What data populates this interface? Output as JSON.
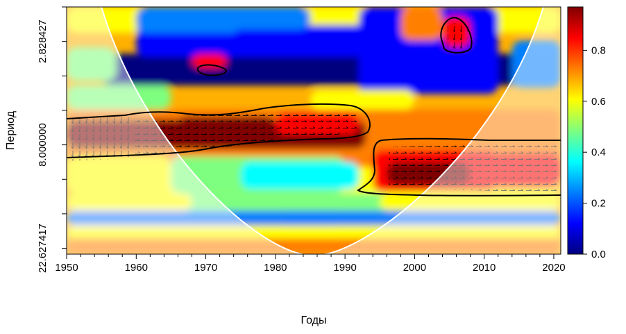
{
  "chart_data": {
    "type": "heatmap",
    "title": "",
    "xlabel": "Годы",
    "ylabel": "Период",
    "x_range": [
      1950,
      2021
    ],
    "period_range": [
      2,
      24
    ],
    "y_scale": "log2",
    "x_ticks": [
      "1950",
      "1960",
      "1970",
      "1980",
      "1990",
      "2000",
      "2010",
      "2020"
    ],
    "x_tick_values": [
      1950,
      1960,
      1970,
      1980,
      1990,
      2000,
      2010,
      2020
    ],
    "y_ticks": [
      "2.828427",
      "8.000000",
      "22.627417"
    ],
    "y_tick_values": [
      2.828427,
      8.0,
      22.627417
    ],
    "colorbar": {
      "min": 0.0,
      "max": 0.97,
      "ticks": [
        "0.0",
        "0.2",
        "0.4",
        "0.6",
        "0.8"
      ],
      "tick_values": [
        0.0,
        0.2,
        0.4,
        0.6,
        0.8
      ],
      "colors": [
        "#00007F",
        "#0000FF",
        "#007FFF",
        "#00FFFF",
        "#7FFF7F",
        "#FFFF00",
        "#FF7F00",
        "#FF0000",
        "#7F0000"
      ]
    },
    "significance_regions": [
      {
        "years": [
          1968,
          1973
        ],
        "period_center": 3.4
      },
      {
        "years": [
          2004,
          2008
        ],
        "period_center": 2.55
      },
      {
        "years": [
          1950,
          1993
        ],
        "period_center": 7.0
      },
      {
        "years": [
          1992,
          2021
        ],
        "period_center": 10.0
      }
    ],
    "cone_of_influence": true,
    "grid": false,
    "legend": "colorbar-right"
  }
}
